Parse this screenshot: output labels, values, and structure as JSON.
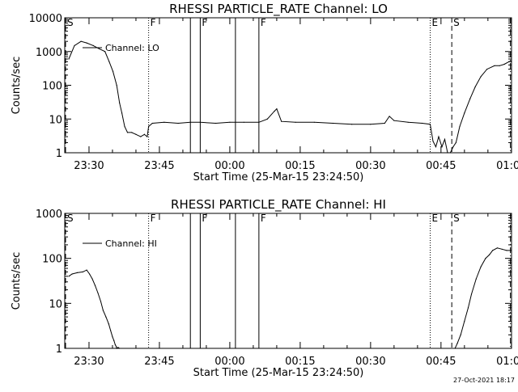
{
  "timestamp": "27-Oct-2021 18:17",
  "chart_data": [
    {
      "type": "line",
      "title": "RHESSI PARTICLE_RATE Channel: LO",
      "xlabel": "Start Time (25-Mar-15 23:24:50)",
      "ylabel": "Counts/sec",
      "yscale": "log",
      "ylim": [
        1,
        10000
      ],
      "y_ticks": [
        {
          "v": 1,
          "label": "1"
        },
        {
          "v": 10,
          "label": "10"
        },
        {
          "v": 100,
          "label": "100"
        },
        {
          "v": 1000,
          "label": "1000"
        },
        {
          "v": 10000,
          "label": "10000"
        }
      ],
      "xlim_minutes": [
        -10.9,
        87.6
      ],
      "x_ticks": [
        {
          "t": -30,
          "label": "23:30"
        },
        {
          "t": -15,
          "label": "23:45"
        },
        {
          "t": 0,
          "label": "00:00"
        },
        {
          "t": 15,
          "label": "00:15"
        },
        {
          "t": 30,
          "label": "00:30"
        },
        {
          "t": 45,
          "label": "00:45"
        },
        {
          "t": 60,
          "label": "01:00"
        }
      ],
      "legend": {
        "label": "Channel: LO",
        "position": "top-left"
      },
      "markers": [
        {
          "t": -35.0,
          "style": "dash",
          "label": "S"
        },
        {
          "t": -17.3,
          "style": "dot",
          "label": "F"
        },
        {
          "t": -8.4,
          "style": "solid",
          "label": ""
        },
        {
          "t": -6.3,
          "style": "solid",
          "label": "F"
        },
        {
          "t": 1.2,
          "style": "solid",
          "label": ""
        },
        {
          "t": 6.2,
          "style": "solid",
          "label": "F"
        },
        {
          "t": 42.7,
          "style": "dot",
          "label": "E"
        },
        {
          "t": 47.3,
          "style": "dash",
          "label": "S"
        },
        {
          "t": 59.8,
          "style": "dashdot",
          "label": ""
        }
      ],
      "series": [
        {
          "name": "Channel: LO",
          "x": [
            -34.3,
            -33.1,
            -31.7,
            -30.5,
            -29.1,
            -27.8,
            -26.6,
            -25.7,
            -24.9,
            -24.1,
            -23.5,
            -23.0,
            -22.4,
            -21.8,
            -20.9,
            -20.0,
            -19.0,
            -18.2,
            -17.6,
            -17.3,
            -16.5,
            -14.0,
            -11.0,
            -8.4,
            -6.3,
            -3.0,
            0.0,
            3.0,
            6.2,
            8.0,
            9.5,
            10.0,
            11.0,
            14.0,
            18.0,
            22.0,
            26.0,
            30.0,
            33.0,
            34.0,
            35.0,
            38.0,
            41.0,
            42.7,
            43.3,
            43.9,
            44.5,
            45.2,
            45.8,
            46.4,
            47.0,
            47.6,
            48.2,
            49.0,
            50.0,
            51.2,
            52.3,
            53.5,
            54.8,
            56.4,
            57.5,
            58.5,
            59.5,
            60.0
          ],
          "y": [
            600,
            1500,
            2000,
            1800,
            1500,
            1200,
            1000,
            500,
            260,
            100,
            30,
            15,
            6,
            4,
            4,
            3.5,
            3,
            3.5,
            3,
            6,
            7.5,
            8,
            7.5,
            8,
            8,
            7.5,
            8,
            8,
            8,
            10,
            17,
            20,
            8.5,
            8,
            8,
            7.5,
            7,
            7,
            7.5,
            12,
            9,
            8,
            7.5,
            7,
            2.2,
            1.5,
            3,
            1.5,
            2.5,
            1,
            1,
            1.5,
            2,
            6,
            15,
            40,
            90,
            180,
            300,
            380,
            380,
            420,
            500,
            520
          ]
        }
      ]
    },
    {
      "type": "line",
      "title": "RHESSI PARTICLE_RATE Channel: HI",
      "xlabel": "Start Time (25-Mar-15 23:24:50)",
      "ylabel": "Counts/sec",
      "yscale": "log",
      "ylim": [
        1,
        1000
      ],
      "y_ticks": [
        {
          "v": 1,
          "label": "1"
        },
        {
          "v": 10,
          "label": "10"
        },
        {
          "v": 100,
          "label": "100"
        },
        {
          "v": 1000,
          "label": "1000"
        }
      ],
      "xlim_minutes": [
        -10.9,
        87.6
      ],
      "x_ticks": [
        {
          "t": -30,
          "label": "23:30"
        },
        {
          "t": -15,
          "label": "23:45"
        },
        {
          "t": 0,
          "label": "00:00"
        },
        {
          "t": 15,
          "label": "00:15"
        },
        {
          "t": 30,
          "label": "00:30"
        },
        {
          "t": 45,
          "label": "00:45"
        },
        {
          "t": 60,
          "label": "01:00"
        }
      ],
      "legend": {
        "label": "Channel: HI",
        "position": "top-left"
      },
      "markers": [
        {
          "t": -35.0,
          "style": "dash",
          "label": "S"
        },
        {
          "t": -17.3,
          "style": "dot",
          "label": "F"
        },
        {
          "t": -8.4,
          "style": "solid",
          "label": ""
        },
        {
          "t": -6.3,
          "style": "solid",
          "label": "F"
        },
        {
          "t": 1.2,
          "style": "solid",
          "label": ""
        },
        {
          "t": 6.2,
          "style": "solid",
          "label": "F"
        },
        {
          "t": 42.7,
          "style": "dot",
          "label": "E"
        },
        {
          "t": 47.3,
          "style": "dash",
          "label": "S"
        },
        {
          "t": 59.8,
          "style": "dashdot",
          "label": ""
        }
      ],
      "series": [
        {
          "name": "Channel: HI",
          "x": [
            -34.3,
            -33.6,
            -32.5,
            -31.3,
            -30.5,
            -29.9,
            -29.3,
            -28.7,
            -28.1,
            -27.5,
            -27.0,
            -26.4,
            -25.8,
            -25.4,
            -25.0,
            -24.7,
            -24.4,
            -24.2,
            -24.1,
            -23.8,
            -23.5,
            48.0,
            48.5,
            49.2,
            50.0,
            50.8,
            51.5,
            52.5,
            53.5,
            54.5,
            55.3,
            56.0,
            57.0,
            58.0,
            59.0,
            60.0
          ],
          "y": [
            40,
            45,
            48,
            50,
            55,
            45,
            35,
            25,
            17,
            11,
            7,
            5,
            3.5,
            2.5,
            1.8,
            1.5,
            1.2,
            1.1,
            1.0,
            1.05,
            1.0,
            1.0,
            1.3,
            2,
            4,
            8,
            16,
            35,
            65,
            100,
            120,
            150,
            170,
            160,
            150,
            150
          ]
        }
      ]
    }
  ]
}
